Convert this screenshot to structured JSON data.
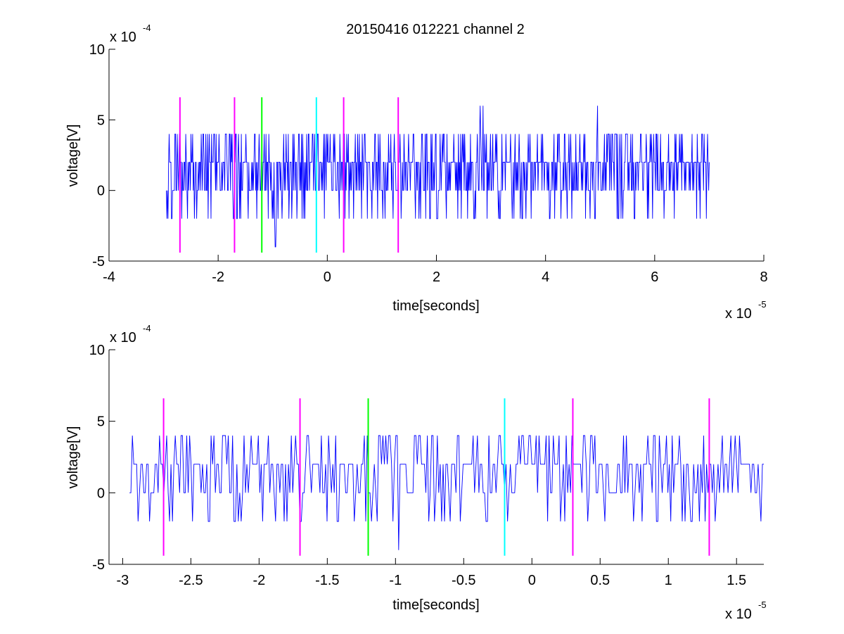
{
  "figure_title": "20150416 012221 channel 2",
  "chart_data": [
    {
      "type": "line",
      "title": "20150416 012221 channel 2",
      "xlabel": "time[seconds]",
      "ylabel": "voltage[V]",
      "x_multiplier": "x 10",
      "x_exponent": "-5",
      "y_multiplier": "x 10",
      "y_exponent": "-4",
      "xlim": [
        -4,
        8
      ],
      "ylim": [
        -5,
        10
      ],
      "x_ticks": [
        -4,
        -2,
        0,
        2,
        4,
        6,
        8
      ],
      "x_tick_labels": [
        "-4",
        "-2",
        "0",
        "2",
        "4",
        "6",
        "8"
      ],
      "y_ticks": [
        -5,
        0,
        5,
        10
      ],
      "y_tick_labels": [
        "-5",
        "0",
        "5",
        "10"
      ],
      "grid": false,
      "signal": {
        "color": "#0000ff",
        "t_start": -2.95,
        "t_end": 7.0,
        "levels": [
          -2,
          0,
          2,
          4
        ],
        "baseline": 2,
        "peak_values": [
          {
            "t": 2.8,
            "v": 6
          },
          {
            "t": 2.85,
            "v": 6
          },
          {
            "t": 4.95,
            "v": 6
          },
          {
            "t": -0.95,
            "v": -4
          }
        ],
        "seed": 7
      },
      "markers": [
        {
          "x": -2.7,
          "color": "#ff00ff"
        },
        {
          "x": -1.7,
          "color": "#ff00ff"
        },
        {
          "x": -1.2,
          "color": "#00ff00"
        },
        {
          "x": -0.2,
          "color": "#00ffff"
        },
        {
          "x": 0.3,
          "color": "#ff00ff"
        },
        {
          "x": 1.3,
          "color": "#ff00ff"
        }
      ],
      "marker_y_range": [
        -4.4,
        6.6
      ]
    },
    {
      "type": "line",
      "title": "",
      "xlabel": "time[seconds]",
      "ylabel": "voltage[V]",
      "x_multiplier": "x 10",
      "x_exponent": "-5",
      "y_multiplier": "x 10",
      "y_exponent": "-4",
      "xlim": [
        -3.1,
        1.7
      ],
      "ylim": [
        -5,
        10
      ],
      "x_ticks": [
        -3,
        -2.5,
        -2,
        -1.5,
        -1,
        -0.5,
        0,
        0.5,
        1,
        1.5
      ],
      "x_tick_labels": [
        "-3",
        "-2.5",
        "-2",
        "-1.5",
        "-1",
        "-0.5",
        "0",
        "0.5",
        "1",
        "1.5"
      ],
      "y_ticks": [
        -5,
        0,
        5,
        10
      ],
      "y_tick_labels": [
        "-5",
        "0",
        "5",
        "10"
      ],
      "grid": false,
      "signal": {
        "color": "#0000ff",
        "t_start": -2.95,
        "t_end": 1.7,
        "levels": [
          -2,
          0,
          2,
          4
        ],
        "baseline": 2,
        "peak_values": [
          {
            "t": -0.98,
            "v": -4
          }
        ],
        "seed": 13
      },
      "markers": [
        {
          "x": -2.7,
          "color": "#ff00ff"
        },
        {
          "x": -1.7,
          "color": "#ff00ff"
        },
        {
          "x": -1.2,
          "color": "#00ff00"
        },
        {
          "x": -0.2,
          "color": "#00ffff"
        },
        {
          "x": 0.3,
          "color": "#ff00ff"
        },
        {
          "x": 1.3,
          "color": "#ff00ff"
        }
      ],
      "marker_y_range": [
        -4.4,
        6.6
      ]
    }
  ]
}
